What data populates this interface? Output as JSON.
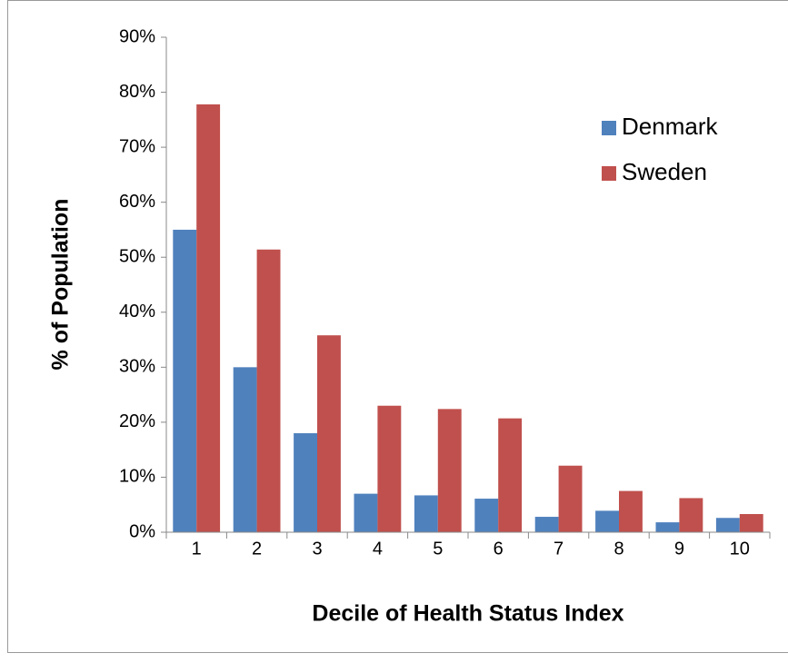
{
  "chart_data": {
    "type": "bar",
    "x_label": "Decile of Health Status Index",
    "y_label": "% of Population",
    "categories": [
      "1",
      "2",
      "3",
      "4",
      "5",
      "6",
      "7",
      "8",
      "9",
      "10"
    ],
    "series": [
      {
        "name": "Denmark",
        "color": "#4f81bd",
        "values": [
          55,
          30,
          18,
          7,
          6.7,
          6.1,
          2.8,
          3.9,
          1.8,
          2.6
        ]
      },
      {
        "name": "Sweden",
        "color": "#c0504d",
        "values": [
          77.8,
          51.4,
          35.8,
          23,
          22.4,
          20.7,
          12.1,
          7.5,
          6.2,
          3.3
        ]
      }
    ],
    "ylim": [
      0,
      90
    ],
    "yticks": [
      {
        "value": 0,
        "label": "0%"
      },
      {
        "value": 10,
        "label": "10%"
      },
      {
        "value": 20,
        "label": "20%"
      },
      {
        "value": 30,
        "label": "30%"
      },
      {
        "value": 40,
        "label": "40%"
      },
      {
        "value": 50,
        "label": "50%"
      },
      {
        "value": 60,
        "label": "60%"
      },
      {
        "value": 70,
        "label": "70%"
      },
      {
        "value": 80,
        "label": "80%"
      },
      {
        "value": 90,
        "label": "90%"
      }
    ],
    "legend": "upper right"
  }
}
